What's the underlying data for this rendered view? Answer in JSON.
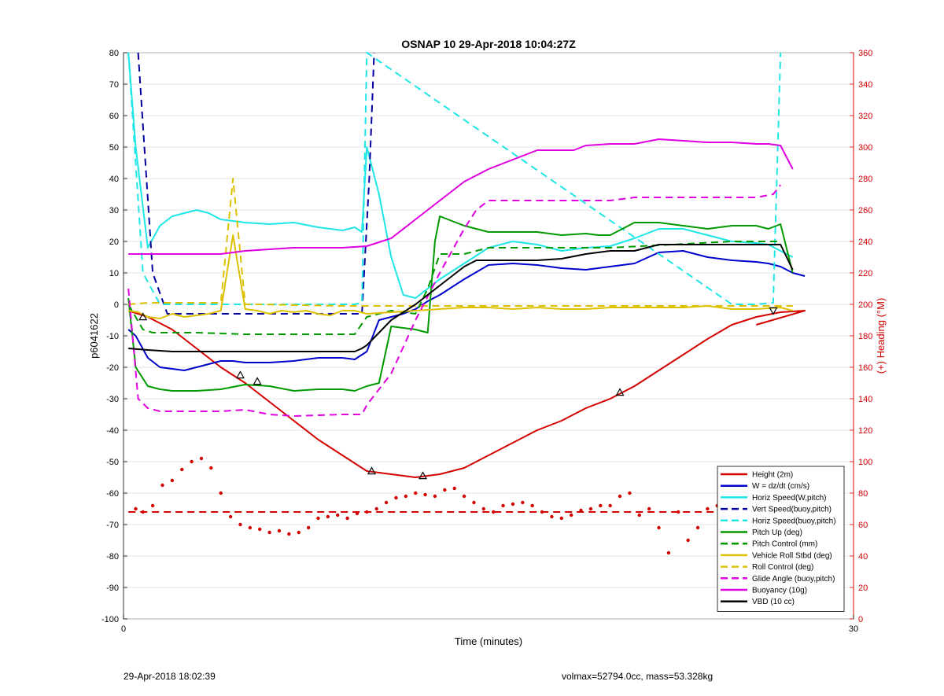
{
  "footer": {
    "left": "29-Apr-2018 18:02:39",
    "right": "volmax=52794.0cc, mass=53.328kg"
  },
  "chart_data": {
    "type": "line",
    "title": "OSNAP 10 29-Apr-2018 10:04:27Z",
    "xlabel": "Time (minutes)",
    "ylabel": "p6041622",
    "y2label": "(+) Heading (°M)",
    "xlim": [
      0,
      30
    ],
    "ylim": [
      -100,
      80
    ],
    "y2lim": [
      0,
      360
    ],
    "xticks": [
      "0",
      "30"
    ],
    "yticks": [
      "80",
      "70",
      "60",
      "50",
      "40",
      "30",
      "20",
      "10",
      "0",
      "-10",
      "-20",
      "-30",
      "-40",
      "-50",
      "-60",
      "-70",
      "-80",
      "-90",
      "-100"
    ],
    "y2ticks": [
      "360",
      "340",
      "320",
      "300",
      "280",
      "260",
      "240",
      "220",
      "200",
      "180",
      "160",
      "140",
      "120",
      "100",
      "80",
      "60",
      "40",
      "20",
      "0"
    ],
    "grid": true,
    "legend_position": "bottom-right",
    "colors": {
      "red": "#d40000",
      "blue": "#0000cc",
      "cyan": "#1ee6e6",
      "navy": "#0000a0",
      "green": "#009900",
      "yellow": "#ddc000",
      "magenta": "#e000e0",
      "black": "#000000",
      "heading_axis": "#d40000"
    },
    "legend": [
      {
        "label": "Height (2m)",
        "color": "#d40000",
        "dash": false
      },
      {
        "label": "W = dz/dt (cm/s)",
        "color": "#0000cc",
        "dash": false
      },
      {
        "label": "Horiz Speed(W,pitch)",
        "color": "#1ee6e6",
        "dash": false
      },
      {
        "label": "Vert Speed(buoy,pitch)",
        "color": "#0000a0",
        "dash": true
      },
      {
        "label": "Horiz Speed(buoy,pitch)",
        "color": "#1ee6e6",
        "dash": true
      },
      {
        "label": "Pitch Up (deg)",
        "color": "#009900",
        "dash": false
      },
      {
        "label": "Pitch Control (mm)",
        "color": "#009900",
        "dash": true
      },
      {
        "label": "Vehicle Roll Stbd (deg)",
        "color": "#ddc000",
        "dash": false
      },
      {
        "label": "Roll Control (deg)",
        "color": "#ddc000",
        "dash": true
      },
      {
        "label": "Glide Angle (buoy,pitch)",
        "color": "#e000e0",
        "dash": true
      },
      {
        "label": "Buoyancy (10g)",
        "color": "#e000e0",
        "dash": false
      },
      {
        "label": "VBD (10 cc)",
        "color": "#000000",
        "dash": false
      }
    ],
    "series": [
      {
        "key": "height",
        "name": "Height (2m)",
        "color": "#d40000",
        "dash": false,
        "width": 2,
        "x": [
          0.2,
          1.0,
          2.0,
          3.0,
          4.0,
          5.0,
          6.0,
          7.0,
          8.0,
          9.0,
          10.0,
          11.0,
          12.0,
          13.0,
          14.0,
          15.0,
          16.0,
          17.0,
          18.0,
          19.0,
          20.0,
          21.0,
          22.0,
          23.0,
          24.0,
          25.0,
          26.0,
          27.0,
          28.0,
          26.0
        ],
        "y": [
          -2,
          -4,
          -8,
          -14,
          -20,
          -25,
          -31,
          -37,
          -43,
          -48,
          -53,
          -54,
          -55,
          -54,
          -52,
          -48,
          -44,
          -40,
          -37,
          -33,
          -30,
          -26,
          -21,
          -16,
          -11,
          -6.5,
          -4,
          -2.5,
          -2,
          -6.5
        ]
      },
      {
        "key": "w",
        "name": "W = dz/dt (cm/s)",
        "color": "#0000cc",
        "dash": false,
        "width": 2,
        "x": [
          0.2,
          0.5,
          1.0,
          1.5,
          2.0,
          2.5,
          3.0,
          3.5,
          4.0,
          4.5,
          5.0,
          6.0,
          7.0,
          8.0,
          9.0,
          9.5,
          10.0,
          10.5,
          11.0,
          11.5,
          12.0,
          12.5,
          13.0,
          14.0,
          15.0,
          16.0,
          17.0,
          18.0,
          19.0,
          19.5,
          20.0,
          21.0,
          22.0,
          23.0,
          24.0,
          25.0,
          26.0,
          26.5,
          27.0,
          27.5,
          28.0
        ],
        "y": [
          -8,
          -10,
          -17,
          -20,
          -20.5,
          -21,
          -20,
          -19,
          -18,
          -18,
          -18.5,
          -18.5,
          -18,
          -17,
          -17,
          -17.5,
          -15,
          -5,
          -4,
          -3,
          -1.5,
          1,
          3,
          8,
          12.5,
          13,
          12.5,
          11.5,
          11,
          11.5,
          12,
          13,
          16.5,
          17,
          15,
          14,
          13.5,
          13,
          12,
          10,
          9
        ]
      },
      {
        "key": "hspeed",
        "name": "Horiz Speed(W,pitch)",
        "color": "#1ee6e6",
        "dash": false,
        "width": 2,
        "x": [
          0.2,
          0.5,
          1.0,
          1.5,
          2.0,
          2.5,
          3.0,
          3.5,
          4.0,
          4.5,
          5.0,
          6.0,
          7.0,
          8.0,
          9.0,
          9.5,
          9.8,
          10.0,
          10.5,
          11.0,
          11.5,
          12.0,
          12.5,
          13.0,
          14.0,
          15.0,
          16.0,
          17.0,
          18.0,
          19.0,
          20.0,
          21.0,
          22.0,
          23.0,
          24.0,
          25.0,
          26.0,
          26.5,
          27.0,
          27.5
        ],
        "y": [
          80,
          50,
          18,
          25,
          28,
          29,
          30,
          29,
          27,
          26.5,
          26,
          25.5,
          26,
          24.5,
          23.5,
          24.5,
          23,
          50,
          35,
          15,
          3,
          2,
          5,
          8,
          13,
          18,
          20,
          19,
          17,
          18,
          18.5,
          21,
          24,
          24,
          22,
          20,
          19.5,
          19,
          17,
          15
        ]
      },
      {
        "key": "vspeed_bp",
        "name": "Vert Speed(buoy,pitch)",
        "color": "#0000a0",
        "dash": true,
        "width": 2,
        "x": [
          0.6,
          1.2,
          1.8,
          9.8,
          10.1,
          10.3
        ],
        "y": [
          80,
          10,
          -3,
          -3,
          40,
          80
        ]
      },
      {
        "key": "hspeed_bp",
        "name": "Horiz Speed(buoy,pitch)",
        "color": "#1ee6e6",
        "dash": true,
        "width": 2,
        "x": [
          0.2,
          0.8,
          1.5,
          2.0,
          9.5,
          9.8,
          10.0,
          25.0,
          26.0,
          26.7,
          27.0
        ],
        "y": [
          80,
          10,
          0,
          0,
          0,
          0.5,
          80,
          0,
          0,
          0.5,
          80
        ]
      },
      {
        "key": "pitch",
        "name": "Pitch Up (deg)",
        "color": "#009900",
        "dash": false,
        "width": 2,
        "x": [
          0.2,
          0.5,
          1.0,
          1.5,
          2.0,
          3.0,
          4.0,
          5.0,
          6.0,
          7.0,
          8.0,
          9.0,
          9.5,
          10.0,
          10.5,
          11.0,
          12.0,
          12.5,
          12.8,
          13.0,
          14.0,
          15.0,
          16.0,
          17.0,
          18.0,
          19.0,
          19.5,
          20.0,
          21.0,
          22.0,
          23.0,
          24.0,
          25.0,
          26.0,
          26.5,
          27.0,
          27.5
        ],
        "y": [
          2,
          -20,
          -26,
          -27,
          -27.5,
          -27.5,
          -27,
          -25.5,
          -26,
          -27.5,
          -27,
          -27,
          -27.5,
          -26,
          -25,
          -7,
          -8,
          -9,
          20,
          28,
          25,
          23,
          23,
          23,
          22,
          22.5,
          22,
          22,
          26,
          26,
          25,
          24,
          25,
          25,
          24,
          25.5,
          10
        ]
      },
      {
        "key": "pitch_ctrl",
        "name": "Pitch Control (mm)",
        "color": "#009900",
        "dash": true,
        "width": 2,
        "x": [
          0.2,
          0.8,
          1.2,
          3.0,
          5.0,
          9.0,
          9.5,
          10.0,
          11.0,
          12.0,
          12.5,
          13.0,
          14.0,
          15.0,
          19.5,
          20.0,
          25.0,
          26.0,
          26.5,
          27.0
        ],
        "y": [
          0,
          -8,
          -9,
          -9,
          -9.5,
          -9.5,
          -9.5,
          -4,
          -2,
          -3,
          5,
          16,
          16,
          18,
          18,
          18,
          20,
          20,
          20,
          20
        ]
      },
      {
        "key": "roll",
        "name": "Vehicle Roll Stbd (deg)",
        "color": "#ddc000",
        "dash": false,
        "width": 2,
        "x": [
          0.2,
          0.6,
          1.0,
          1.5,
          2.0,
          2.5,
          3.0,
          3.5,
          4.0,
          4.5,
          5.0,
          5.5,
          6.0,
          6.5,
          7.0,
          7.5,
          8.0,
          8.5,
          9.0,
          9.5,
          10.0,
          11.0,
          12.0,
          13.0,
          14.0,
          15.0,
          16.0,
          17.0,
          18.0,
          19.0,
          20.0,
          21.0,
          22.0,
          23.0,
          24.0,
          25.0,
          26.0,
          27.0,
          27.5
        ],
        "y": [
          -2,
          -2.5,
          -4,
          -4.5,
          -3,
          -4,
          -3.5,
          -3,
          -2,
          22,
          -1.5,
          -2,
          -3,
          -2,
          -2.5,
          -2,
          -3,
          -3.5,
          -2,
          -2,
          -3,
          -2.5,
          -2,
          -1.5,
          -1,
          -1,
          -1.5,
          -1,
          -1.5,
          -1.5,
          -1,
          -1,
          -1,
          -1,
          -0.5,
          -1.5,
          -1.5,
          -1,
          -2
        ]
      },
      {
        "key": "roll_ctrl",
        "name": "Roll Control (deg)",
        "color": "#ddc000",
        "dash": true,
        "width": 2,
        "x": [
          0.2,
          1.0,
          2.0,
          3.0,
          4.0,
          4.5,
          5.0,
          5.5,
          9.0,
          10.0,
          11.0,
          20.0,
          27.5
        ],
        "y": [
          0,
          0.5,
          0.5,
          0.5,
          0.5,
          40,
          0,
          0,
          -0.5,
          -0.5,
          -0.5,
          -0.5,
          -0.5
        ]
      },
      {
        "key": "glide",
        "name": "Glide Angle (buoy,pitch)",
        "color": "#e000e0",
        "dash": true,
        "width": 2,
        "x": [
          0.2,
          0.6,
          1.0,
          1.5,
          2.0,
          4.0,
          5.0,
          6.0,
          7.0,
          9.0,
          9.8,
          10.0,
          11.0,
          12.0,
          13.0,
          14.0,
          14.5,
          15.0,
          17.0,
          18.0,
          20.0,
          21.0,
          22.0,
          25.0,
          26.0,
          26.7,
          27.0
        ],
        "y": [
          5,
          -30,
          -33,
          -34,
          -34,
          -34,
          -33.5,
          -35,
          -35.5,
          -35,
          -35,
          -32,
          -22,
          -5,
          10,
          24,
          30,
          33,
          33,
          33,
          33,
          34,
          34,
          34,
          34,
          35,
          38
        ]
      },
      {
        "key": "buoyancy",
        "name": "Buoyancy (10g)",
        "color": "#e000e0",
        "dash": false,
        "width": 2,
        "x": [
          0.2,
          1.0,
          2.0,
          3.0,
          4.0,
          4.5,
          5.0,
          6.0,
          7.0,
          8.0,
          9.0,
          10.0,
          11.0,
          12.0,
          13.0,
          14.0,
          15.0,
          17.0,
          18.0,
          18.5,
          19.0,
          20.0,
          21.0,
          22.0,
          23.0,
          24.0,
          25.0,
          26.0,
          26.5,
          27.0,
          27.5
        ],
        "y": [
          16,
          16,
          16,
          16,
          16,
          16.5,
          17,
          17.5,
          18,
          18,
          18,
          18.5,
          21,
          27,
          33,
          39,
          43,
          49,
          49,
          49,
          50.5,
          51,
          51,
          52.5,
          52,
          51.5,
          51.5,
          51,
          51,
          50.5,
          43
        ]
      },
      {
        "key": "vbd",
        "name": "VBD (10 cc)",
        "color": "#000000",
        "dash": false,
        "width": 2,
        "x": [
          0.2,
          1.0,
          2.0,
          3.0,
          4.0,
          5.0,
          6.0,
          7.0,
          8.0,
          9.0,
          9.5,
          9.8,
          10.0,
          11.0,
          12.0,
          13.0,
          14.0,
          14.5,
          15.0,
          17.0,
          18.0,
          19.0,
          20.0,
          21.0,
          22.0,
          23.0,
          24.0,
          25.0,
          26.0,
          27.0,
          27.5
        ],
        "y": [
          -14,
          -14.5,
          -15,
          -15,
          -15,
          -15,
          -15,
          -15,
          -15,
          -15,
          -15,
          -14,
          -13,
          -5,
          0,
          6,
          12,
          14,
          14,
          14,
          14.5,
          16,
          17,
          17,
          19,
          19,
          19,
          19,
          19,
          19,
          11
        ]
      }
    ],
    "heading_target": 68,
    "heading_points": {
      "x": [
        0.5,
        0.8,
        1.2,
        1.6,
        2.0,
        2.4,
        2.8,
        3.2,
        3.6,
        4.0,
        4.4,
        4.8,
        5.2,
        5.6,
        6.0,
        6.4,
        6.8,
        7.2,
        7.6,
        8.0,
        8.4,
        8.8,
        9.2,
        9.6,
        10.0,
        10.4,
        10.8,
        11.2,
        11.6,
        12.0,
        12.4,
        12.8,
        13.2,
        13.6,
        14.0,
        14.4,
        14.8,
        15.2,
        15.6,
        16.0,
        16.4,
        16.8,
        17.2,
        17.6,
        18.0,
        18.4,
        18.8,
        19.2,
        19.6,
        20.0,
        20.4,
        20.8,
        21.2,
        21.6,
        22.0,
        22.4,
        22.8,
        23.2,
        23.6,
        24.0,
        24.4,
        24.8,
        25.2,
        25.6,
        26.0,
        26.4,
        26.8
      ],
      "y": [
        70,
        68,
        72,
        85,
        88,
        95,
        100,
        102,
        96,
        80,
        65,
        60,
        58,
        57,
        55,
        56,
        54,
        55,
        58,
        64,
        65,
        66,
        64,
        67,
        68,
        70,
        74,
        77,
        78,
        80,
        79,
        78,
        82,
        83,
        78,
        74,
        70,
        68,
        72,
        73,
        74,
        72,
        68,
        65,
        64,
        66,
        69,
        70,
        72,
        72,
        78,
        80,
        66,
        70,
        58,
        42,
        68,
        50,
        58,
        70,
        72,
        76,
        78,
        80,
        60,
        62,
        72
      ]
    },
    "markers_up": [
      {
        "x": 0.8,
        "y": -4
      },
      {
        "x": 4.8,
        "y": -22.5
      },
      {
        "x": 5.5,
        "y": -24.5
      },
      {
        "x": 10.2,
        "y": -53
      },
      {
        "x": 12.3,
        "y": -54.5
      },
      {
        "x": 20.4,
        "y": -28
      }
    ],
    "markers_down": [
      {
        "x": 26.7,
        "y": -2
      }
    ]
  }
}
